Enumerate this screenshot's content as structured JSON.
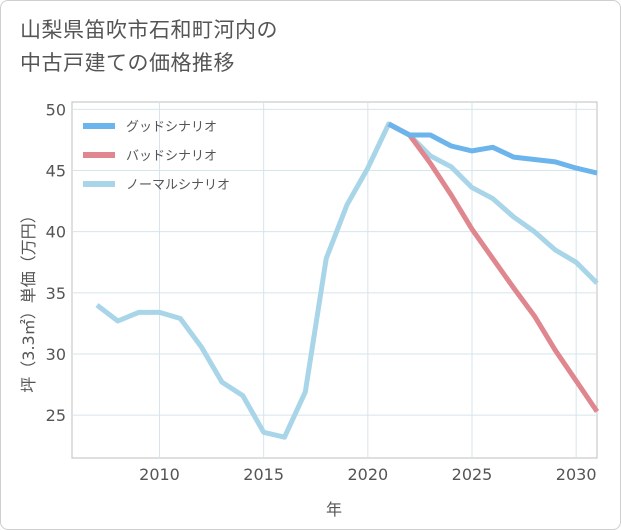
{
  "title": {
    "line1": "山梨県笛吹市石和町河内の",
    "line2": "中古戸建ての価格推移"
  },
  "chart_data": {
    "type": "line",
    "xlabel": "年",
    "ylabel": "坪（3.3㎡）単価（万円）",
    "xlim": [
      2005.8,
      2031
    ],
    "ylim": [
      21.5,
      50.6
    ],
    "x_ticks": [
      2010,
      2015,
      2020,
      2025,
      2030
    ],
    "y_ticks": [
      25,
      30,
      35,
      40,
      45,
      50
    ],
    "grid": true,
    "legend_position": "top-left",
    "series": [
      {
        "name": "グッドシナリオ",
        "color": "#6cb4ec",
        "x": [
          2021,
          2022,
          2023,
          2024,
          2025,
          2026,
          2027,
          2028,
          2029,
          2030,
          2031
        ],
        "values": [
          48.8,
          47.9,
          47.9,
          47.0,
          46.6,
          46.9,
          46.1,
          45.9,
          45.7,
          45.2,
          44.8
        ]
      },
      {
        "name": "バッドシナリオ",
        "color": "#e0868f",
        "x": [
          2021,
          2022,
          2023,
          2024,
          2025,
          2026,
          2027,
          2028,
          2029,
          2030,
          2031
        ],
        "values": [
          48.8,
          47.9,
          45.6,
          43.0,
          40.2,
          37.8,
          35.4,
          33.1,
          30.3,
          27.8,
          25.3
        ]
      },
      {
        "name": "ノーマルシナリオ",
        "color": "#a9d5e9",
        "x": [
          2007,
          2008,
          2009,
          2010,
          2011,
          2012,
          2013,
          2014,
          2015,
          2016,
          2017,
          2018,
          2019,
          2020,
          2021,
          2022,
          2023,
          2024,
          2025,
          2026,
          2027,
          2028,
          2029,
          2030,
          2031
        ],
        "values": [
          34.0,
          32.7,
          33.4,
          33.4,
          32.9,
          30.6,
          27.7,
          26.6,
          23.6,
          23.2,
          26.9,
          37.8,
          42.2,
          45.2,
          48.8,
          47.9,
          46.2,
          45.3,
          43.6,
          42.7,
          41.2,
          40.0,
          38.5,
          37.5,
          35.8
        ]
      }
    ]
  }
}
